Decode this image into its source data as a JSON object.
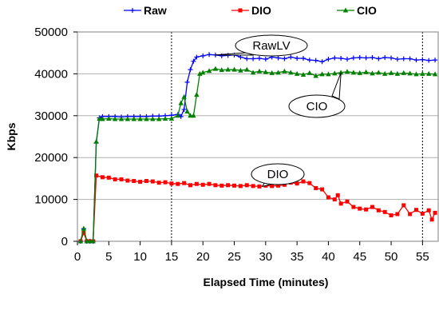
{
  "chart_data": {
    "type": "line",
    "xlabel": "Elapsed Time (minutes)",
    "ylabel": "Kbps",
    "xlim": [
      0,
      57.5
    ],
    "ylim": [
      0,
      50000
    ],
    "x_ticks": [
      0,
      5,
      10,
      15,
      20,
      25,
      30,
      35,
      40,
      45,
      50,
      55
    ],
    "y_ticks": [
      0,
      10000,
      20000,
      30000,
      40000,
      50000
    ],
    "vertical_markers": [
      15,
      55
    ],
    "grid": "horizontal",
    "legend_position": "top",
    "series": [
      {
        "name": "Raw",
        "color": "#0000ff",
        "marker": "plus",
        "points": [
          [
            0.5,
            0
          ],
          [
            1,
            3000
          ],
          [
            1.5,
            0
          ],
          [
            2,
            0
          ],
          [
            2.5,
            0
          ],
          [
            3,
            23500
          ],
          [
            3.5,
            29500
          ],
          [
            4,
            29800
          ],
          [
            5,
            29800
          ],
          [
            6,
            29800
          ],
          [
            7,
            29700
          ],
          [
            8,
            29800
          ],
          [
            9,
            29800
          ],
          [
            10,
            29800
          ],
          [
            11,
            29800
          ],
          [
            12,
            29900
          ],
          [
            13,
            29900
          ],
          [
            14,
            30000
          ],
          [
            15,
            30100
          ],
          [
            16,
            30300
          ],
          [
            16.5,
            29800
          ],
          [
            17,
            31500
          ],
          [
            17.5,
            38000
          ],
          [
            18,
            41000
          ],
          [
            18.5,
            43000
          ],
          [
            19,
            44000
          ],
          [
            20,
            44300
          ],
          [
            21,
            44600
          ],
          [
            22,
            44500
          ],
          [
            23,
            44300
          ],
          [
            24,
            44400
          ],
          [
            25,
            44500
          ],
          [
            26,
            44000
          ],
          [
            27,
            43600
          ],
          [
            28,
            43600
          ],
          [
            29,
            43700
          ],
          [
            30,
            43500
          ],
          [
            31,
            44000
          ],
          [
            32,
            43800
          ],
          [
            33,
            43600
          ],
          [
            34,
            44000
          ],
          [
            35,
            43700
          ],
          [
            36,
            43700
          ],
          [
            37,
            43300
          ],
          [
            38,
            43200
          ],
          [
            39,
            42900
          ],
          [
            40,
            43500
          ],
          [
            41,
            43800
          ],
          [
            42,
            43700
          ],
          [
            43,
            43500
          ],
          [
            44,
            43800
          ],
          [
            45,
            43900
          ],
          [
            46,
            43800
          ],
          [
            47,
            43900
          ],
          [
            48,
            43600
          ],
          [
            49,
            43900
          ],
          [
            50,
            43800
          ],
          [
            51,
            43500
          ],
          [
            52,
            43600
          ],
          [
            53,
            43600
          ],
          [
            54,
            43300
          ],
          [
            55,
            43400
          ],
          [
            56,
            43200
          ],
          [
            57,
            43300
          ]
        ]
      },
      {
        "name": "DIO",
        "color": "#ff0000",
        "marker": "square",
        "points": [
          [
            0.5,
            0
          ],
          [
            1,
            2000
          ],
          [
            1.5,
            0
          ],
          [
            2,
            0
          ],
          [
            2.5,
            0
          ],
          [
            3,
            15700
          ],
          [
            4,
            15300
          ],
          [
            5,
            15200
          ],
          [
            6,
            14800
          ],
          [
            7,
            14800
          ],
          [
            8,
            14500
          ],
          [
            9,
            14400
          ],
          [
            10,
            14200
          ],
          [
            11,
            14400
          ],
          [
            12,
            14300
          ],
          [
            13,
            14000
          ],
          [
            14,
            14100
          ],
          [
            15,
            13800
          ],
          [
            16,
            13700
          ],
          [
            17,
            13900
          ],
          [
            18,
            13400
          ],
          [
            19,
            13700
          ],
          [
            20,
            13500
          ],
          [
            21,
            13700
          ],
          [
            22,
            13400
          ],
          [
            23,
            13300
          ],
          [
            24,
            13400
          ],
          [
            25,
            13300
          ],
          [
            26,
            13200
          ],
          [
            27,
            13400
          ],
          [
            28,
            13200
          ],
          [
            29,
            13100
          ],
          [
            30,
            13300
          ],
          [
            31,
            13200
          ],
          [
            32,
            13300
          ],
          [
            33,
            13500
          ],
          [
            33.5,
            15300
          ],
          [
            34,
            14000
          ],
          [
            35,
            13800
          ],
          [
            36,
            14300
          ],
          [
            37,
            13900
          ],
          [
            38,
            12700
          ],
          [
            39,
            12400
          ],
          [
            40,
            10500
          ],
          [
            41,
            10000
          ],
          [
            41.5,
            11000
          ],
          [
            42,
            9000
          ],
          [
            43,
            9500
          ],
          [
            44,
            8200
          ],
          [
            45,
            7800
          ],
          [
            46,
            7600
          ],
          [
            47,
            8200
          ],
          [
            48,
            7400
          ],
          [
            49,
            7000
          ],
          [
            50,
            6200
          ],
          [
            51,
            6500
          ],
          [
            52,
            8600
          ],
          [
            53,
            6500
          ],
          [
            54,
            7500
          ],
          [
            55,
            6600
          ],
          [
            56,
            7400
          ],
          [
            56.5,
            5200
          ],
          [
            57,
            6800
          ]
        ]
      },
      {
        "name": "CIO",
        "color": "#008000",
        "marker": "triangle",
        "points": [
          [
            0.5,
            0
          ],
          [
            1,
            3000
          ],
          [
            1.5,
            0
          ],
          [
            2,
            0
          ],
          [
            2.5,
            0
          ],
          [
            3,
            23800
          ],
          [
            3.5,
            29300
          ],
          [
            4,
            29200
          ],
          [
            5,
            29300
          ],
          [
            6,
            29200
          ],
          [
            7,
            29200
          ],
          [
            8,
            29200
          ],
          [
            9,
            29200
          ],
          [
            10,
            29200
          ],
          [
            11,
            29200
          ],
          [
            12,
            29200
          ],
          [
            13,
            29200
          ],
          [
            14,
            29300
          ],
          [
            15,
            29300
          ],
          [
            16,
            30000
          ],
          [
            16.5,
            33000
          ],
          [
            17,
            34500
          ],
          [
            17.5,
            31000
          ],
          [
            18,
            30000
          ],
          [
            18.5,
            30000
          ],
          [
            19,
            35000
          ],
          [
            19.5,
            40000
          ],
          [
            20,
            40300
          ],
          [
            21,
            40700
          ],
          [
            22,
            41200
          ],
          [
            23,
            40900
          ],
          [
            24,
            41000
          ],
          [
            25,
            41000
          ],
          [
            26,
            40800
          ],
          [
            27,
            41000
          ],
          [
            28,
            40300
          ],
          [
            29,
            40600
          ],
          [
            30,
            40400
          ],
          [
            31,
            40200
          ],
          [
            32,
            40300
          ],
          [
            33,
            40600
          ],
          [
            34,
            40300
          ],
          [
            35,
            40000
          ],
          [
            36,
            39800
          ],
          [
            37,
            40200
          ],
          [
            38,
            39500
          ],
          [
            39,
            39900
          ],
          [
            40,
            39900
          ],
          [
            41,
            40100
          ],
          [
            42,
            40300
          ],
          [
            43,
            40500
          ],
          [
            44,
            40300
          ],
          [
            45,
            40200
          ],
          [
            46,
            40400
          ],
          [
            47,
            40100
          ],
          [
            48,
            40300
          ],
          [
            49,
            40000
          ],
          [
            50,
            40200
          ],
          [
            51,
            40000
          ],
          [
            52,
            40200
          ],
          [
            53,
            40100
          ],
          [
            54,
            39900
          ],
          [
            55,
            40000
          ],
          [
            56,
            40000
          ],
          [
            57,
            39900
          ]
        ]
      }
    ],
    "annotations": [
      {
        "text": "RawLV",
        "target": [
          22,
          44500
        ]
      },
      {
        "text": "CIO",
        "target": [
          42,
          40300
        ]
      },
      {
        "text": "DIO",
        "target": [
          29.5,
          13100
        ]
      }
    ]
  }
}
